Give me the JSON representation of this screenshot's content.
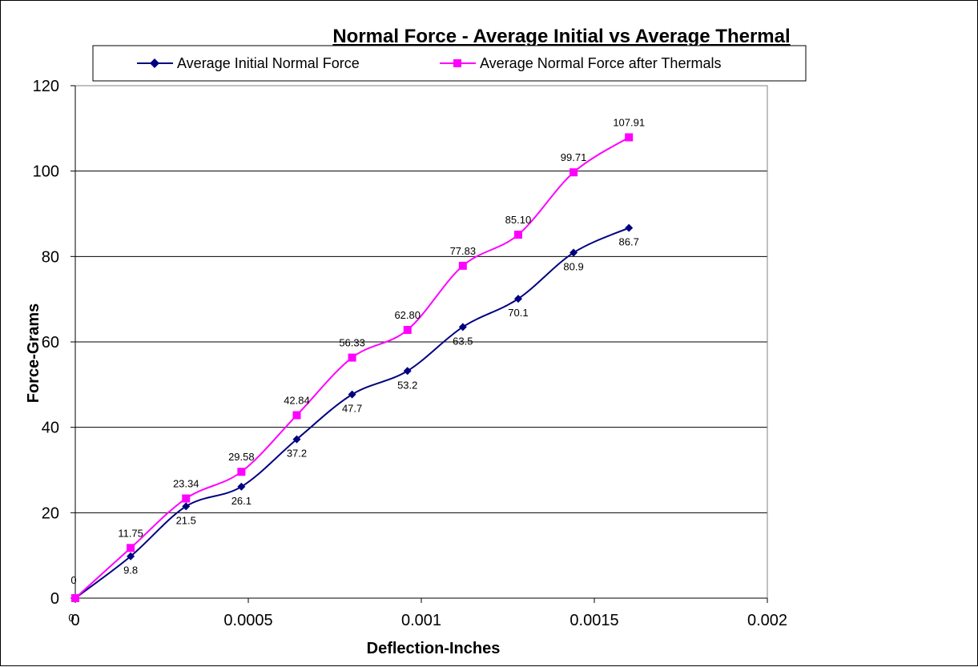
{
  "chart_data": {
    "type": "line",
    "title": "Normal Force - Average Initial vs Average Thermal",
    "xlabel": "Deflection-Inches",
    "ylabel": "Force-Grams",
    "xlim": [
      0,
      0.002
    ],
    "ylim": [
      0,
      120
    ],
    "x_ticks": [
      0,
      0.0005,
      0.001,
      0.0015,
      0.002
    ],
    "x_tick_labels": [
      "0",
      "0.0005",
      "0.001",
      "0.0015",
      "0.002"
    ],
    "y_ticks": [
      0,
      20,
      40,
      60,
      80,
      100,
      120
    ],
    "y_tick_labels": [
      "0",
      "20",
      "40",
      "60",
      "80",
      "100",
      "120"
    ],
    "grid": "horizontal",
    "legend_position": "top",
    "x": [
      0,
      0.00016,
      0.00032,
      0.00048,
      0.00064,
      0.0008,
      0.00096,
      0.00112,
      0.00128,
      0.00144,
      0.0016
    ],
    "series": [
      {
        "name": "Average Initial Normal Force",
        "color": "#000080",
        "marker": "diamond",
        "values": [
          0,
          9.8,
          21.5,
          26.1,
          37.2,
          47.7,
          53.2,
          63.5,
          70.1,
          80.9,
          86.7
        ],
        "labels": [
          "0",
          "9.8",
          "21.5",
          "26.1",
          "37.2",
          "47.7",
          "53.2",
          "63.5",
          "70.1",
          "80.9",
          "86.7"
        ],
        "label_position": "below"
      },
      {
        "name": "Average Normal Force after Thermals",
        "color": "#FF00FF",
        "marker": "square",
        "values": [
          0,
          11.75,
          23.34,
          29.58,
          42.84,
          56.33,
          62.8,
          77.83,
          85.1,
          99.71,
          107.91
        ],
        "labels": [
          "0",
          "11.75",
          "23.34",
          "29.58",
          "42.84",
          "56.33",
          "62.80",
          "77.83",
          "85.10",
          "99.71",
          "107.91"
        ],
        "label_position": "above"
      }
    ]
  }
}
